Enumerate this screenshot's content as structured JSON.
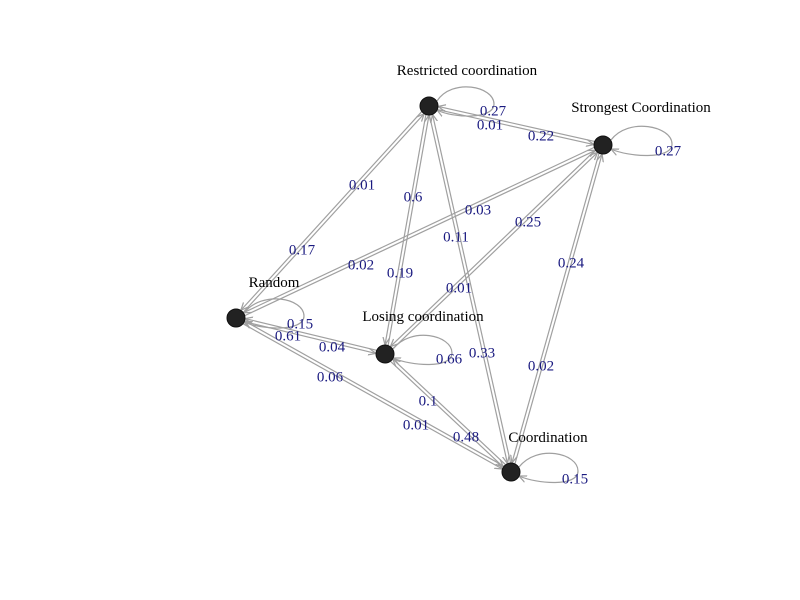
{
  "colors": {
    "node": "#222222",
    "edge": "#a0a0a0",
    "edge_label": "#1a1a80",
    "node_label": "#000000"
  },
  "nodes": [
    {
      "id": "restricted",
      "label": "Restricted coordination"
    },
    {
      "id": "strongest",
      "label": "Strongest Coordination"
    },
    {
      "id": "random",
      "label": "Random"
    },
    {
      "id": "losing",
      "label": "Losing coordination"
    },
    {
      "id": "coordination",
      "label": "Coordination"
    }
  ],
  "edges": [
    {
      "from": "restricted",
      "to": "restricted",
      "weight": "0.27"
    },
    {
      "from": "strongest",
      "to": "strongest",
      "weight": "0.27"
    },
    {
      "from": "random",
      "to": "random",
      "weight": "0.15"
    },
    {
      "from": "losing",
      "to": "losing",
      "weight": "0.66"
    },
    {
      "from": "coordination",
      "to": "coordination",
      "weight": "0.15"
    },
    {
      "from": "strongest",
      "to": "restricted",
      "weight": "0.01"
    },
    {
      "from": "restricted",
      "to": "strongest",
      "weight": "0.22"
    },
    {
      "from": "random",
      "to": "restricted",
      "weight": "0.17"
    },
    {
      "from": "restricted",
      "to": "random",
      "weight": "0.01"
    },
    {
      "from": "restricted",
      "to": "losing",
      "weight": "0.19"
    },
    {
      "from": "losing",
      "to": "restricted",
      "weight": "0.6"
    },
    {
      "from": "restricted",
      "to": "coordination",
      "weight": "0.33"
    },
    {
      "from": "coordination",
      "to": "restricted",
      "weight": "0.11"
    },
    {
      "from": "random",
      "to": "strongest",
      "weight": "0.03"
    },
    {
      "from": "strongest",
      "to": "random",
      "weight": "0.02"
    },
    {
      "from": "losing",
      "to": "strongest",
      "weight": "0.25"
    },
    {
      "from": "strongest",
      "to": "losing",
      "weight": "0.01"
    },
    {
      "from": "coordination",
      "to": "strongest",
      "weight": "0.24"
    },
    {
      "from": "strongest",
      "to": "coordination",
      "weight": "0.02"
    },
    {
      "from": "random",
      "to": "losing",
      "weight": "0.04"
    },
    {
      "from": "losing",
      "to": "random",
      "weight": "0.61"
    },
    {
      "from": "random",
      "to": "coordination",
      "weight": "0.01"
    },
    {
      "from": "coordination",
      "to": "random",
      "weight": "0.06"
    },
    {
      "from": "losing",
      "to": "coordination",
      "weight": "0.48"
    },
    {
      "from": "coordination",
      "to": "losing",
      "weight": "0.1"
    }
  ]
}
